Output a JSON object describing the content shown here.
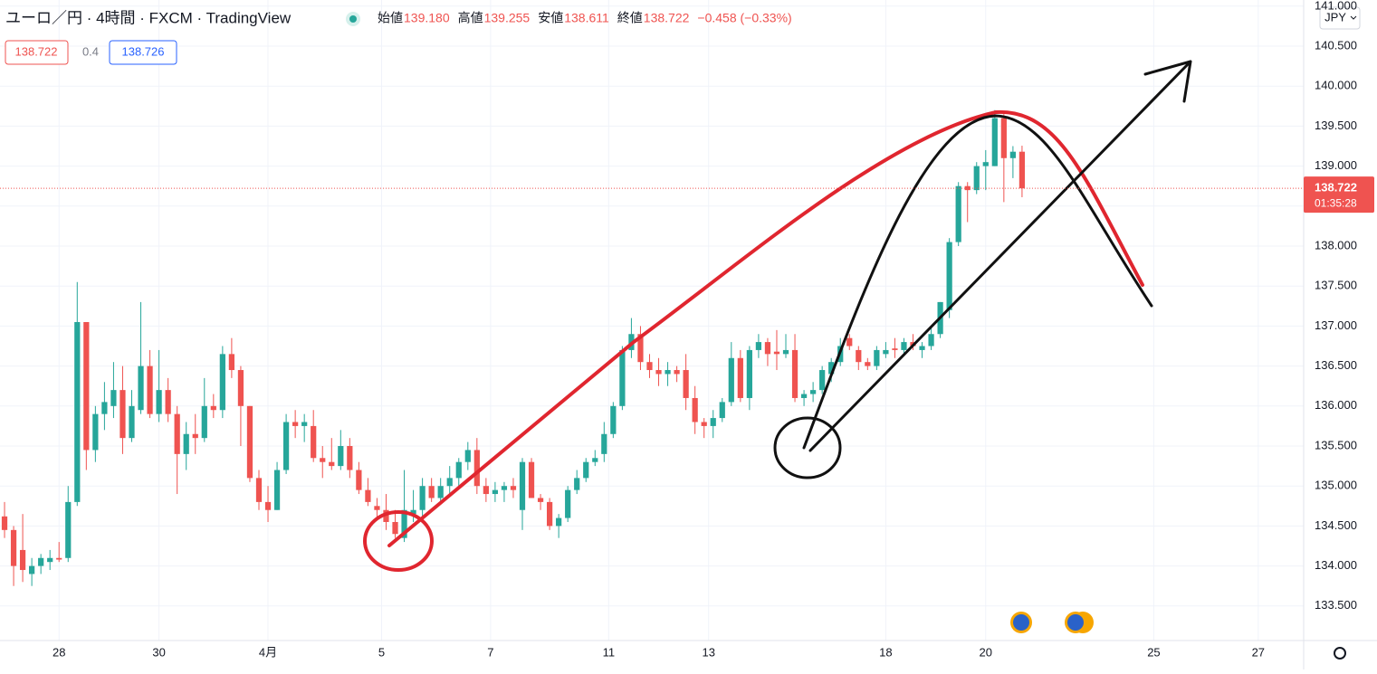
{
  "chart_data": {
    "type": "candlestick",
    "title": "ユーロ／円 · 4時間 · FXCM · TradingView",
    "legend": {
      "open_label": "始値",
      "open": "139.180",
      "high_label": "高値",
      "high": "139.255",
      "low_label": "安値",
      "low": "138.611",
      "close_label": "終値",
      "close": "138.722",
      "change": "−0.458 (−0.33%)"
    },
    "sell_price": "138.722",
    "spread": "0.4",
    "buy_price": "138.726",
    "currency": "JPY",
    "last_price": {
      "value": 138.722,
      "label": "138.722"
    },
    "countdown": "01:35:28",
    "up_color": "#26a69a",
    "down_color": "#ef5350",
    "grid": true,
    "ylim": [
      133.068,
      141.077
    ],
    "yticks": [
      {
        "value": 133.5,
        "label": "133.500"
      },
      {
        "value": 134,
        "label": "134.000"
      },
      {
        "value": 134.5,
        "label": "134.500"
      },
      {
        "value": 135,
        "label": "135.000"
      },
      {
        "value": 135.5,
        "label": "135.500"
      },
      {
        "value": 136,
        "label": "136.000"
      },
      {
        "value": 136.5,
        "label": "136.500"
      },
      {
        "value": 137,
        "label": "137.000"
      },
      {
        "value": 137.5,
        "label": "137.500"
      },
      {
        "value": 138,
        "label": "138.000"
      },
      {
        "value": 138.5,
        "label": "138.500"
      },
      {
        "value": 139,
        "label": "139.000"
      },
      {
        "value": 139.5,
        "label": "139.500"
      },
      {
        "value": 140,
        "label": "140.000"
      },
      {
        "value": 140.5,
        "label": "140.500"
      },
      {
        "value": 141,
        "label": "141.000"
      }
    ],
    "xlim": [
      -0.5,
      143
    ],
    "xticks": [
      {
        "value": 6,
        "label": "28"
      },
      {
        "value": 17,
        "label": "30"
      },
      {
        "value": 29,
        "label": "4月"
      },
      {
        "value": 41.5,
        "label": "5"
      },
      {
        "value": 53.5,
        "label": "7"
      },
      {
        "value": 66.5,
        "label": "11"
      },
      {
        "value": 77.5,
        "label": "13"
      },
      {
        "value": 97,
        "label": "18"
      },
      {
        "value": 108,
        "label": "20"
      },
      {
        "value": 126.5,
        "label": "25"
      },
      {
        "value": 138,
        "label": "27"
      }
    ],
    "ohlc": [
      [
        134.62,
        134.8,
        134.35,
        134.45
      ],
      [
        134.45,
        134.5,
        133.75,
        134.0
      ],
      [
        134.2,
        134.65,
        133.8,
        133.95
      ],
      [
        133.9,
        134.1,
        133.75,
        134.0
      ],
      [
        134.0,
        134.15,
        133.9,
        134.1
      ],
      [
        134.05,
        134.2,
        133.95,
        134.1
      ],
      [
        134.1,
        134.3,
        134.05,
        134.08
      ],
      [
        134.1,
        135.0,
        134.05,
        134.8
      ],
      [
        134.8,
        137.55,
        134.75,
        137.05
      ],
      [
        137.05,
        137.05,
        135.2,
        135.45
      ],
      [
        135.45,
        136.0,
        135.3,
        135.9
      ],
      [
        135.9,
        136.3,
        135.7,
        136.05
      ],
      [
        136.0,
        136.55,
        135.85,
        136.2
      ],
      [
        136.2,
        136.5,
        135.4,
        135.6
      ],
      [
        135.6,
        136.2,
        135.55,
        136.0
      ],
      [
        135.95,
        137.3,
        135.9,
        136.5
      ],
      [
        136.5,
        136.7,
        135.85,
        135.9
      ],
      [
        135.9,
        136.7,
        135.8,
        136.2
      ],
      [
        136.2,
        136.35,
        135.8,
        135.9
      ],
      [
        135.9,
        136.0,
        134.9,
        135.4
      ],
      [
        135.4,
        135.8,
        135.2,
        135.65
      ],
      [
        135.65,
        135.9,
        135.4,
        135.6
      ],
      [
        135.6,
        136.35,
        135.55,
        136.0
      ],
      [
        136.0,
        136.15,
        135.85,
        135.95
      ],
      [
        135.95,
        136.75,
        135.85,
        136.65
      ],
      [
        136.65,
        136.85,
        136.35,
        136.45
      ],
      [
        136.45,
        136.5,
        135.5,
        136.0
      ],
      [
        136.0,
        136.0,
        135.05,
        135.1
      ],
      [
        135.1,
        135.2,
        134.7,
        134.8
      ],
      [
        134.8,
        135.0,
        134.55,
        134.7
      ],
      [
        134.7,
        135.3,
        134.7,
        135.2
      ],
      [
        135.2,
        135.9,
        135.15,
        135.8
      ],
      [
        135.8,
        135.95,
        135.6,
        135.75
      ],
      [
        135.75,
        135.9,
        135.55,
        135.8
      ],
      [
        135.75,
        135.95,
        135.3,
        135.35
      ],
      [
        135.35,
        135.5,
        135.1,
        135.3
      ],
      [
        135.3,
        135.6,
        135.2,
        135.25
      ],
      [
        135.25,
        135.7,
        135.2,
        135.5
      ],
      [
        135.5,
        135.6,
        135.1,
        135.2
      ],
      [
        135.2,
        135.3,
        134.9,
        134.95
      ],
      [
        134.95,
        135.1,
        134.75,
        134.8
      ],
      [
        134.75,
        134.85,
        134.6,
        134.7
      ],
      [
        134.7,
        134.9,
        134.45,
        134.55
      ],
      [
        134.55,
        134.7,
        134.35,
        134.4
      ],
      [
        134.35,
        135.2,
        134.3,
        134.7
      ],
      [
        134.65,
        134.95,
        134.55,
        134.7
      ],
      [
        134.7,
        135.1,
        134.6,
        135.0
      ],
      [
        135.0,
        135.1,
        134.8,
        134.85
      ],
      [
        134.85,
        135.1,
        134.8,
        135.0
      ],
      [
        135.0,
        135.25,
        134.9,
        135.1
      ],
      [
        135.1,
        135.35,
        135.0,
        135.3
      ],
      [
        135.3,
        135.55,
        135.2,
        135.45
      ],
      [
        135.45,
        135.6,
        134.9,
        135.0
      ],
      [
        135.0,
        135.1,
        134.8,
        134.9
      ],
      [
        134.9,
        135.05,
        134.8,
        134.95
      ],
      [
        134.95,
        135.05,
        134.8,
        135.0
      ],
      [
        135.0,
        135.1,
        134.85,
        134.95
      ],
      [
        134.7,
        135.35,
        134.45,
        135.3
      ],
      [
        135.3,
        135.35,
        134.85,
        134.85
      ],
      [
        134.85,
        134.9,
        134.7,
        134.8
      ],
      [
        134.8,
        134.85,
        134.45,
        134.5
      ],
      [
        134.5,
        134.65,
        134.35,
        134.6
      ],
      [
        134.6,
        135.0,
        134.55,
        134.95
      ],
      [
        134.95,
        135.2,
        134.9,
        135.1
      ],
      [
        135.1,
        135.35,
        135.05,
        135.3
      ],
      [
        135.3,
        135.45,
        135.25,
        135.35
      ],
      [
        135.4,
        135.8,
        135.3,
        135.65
      ],
      [
        135.65,
        136.05,
        135.6,
        136.0
      ],
      [
        136.0,
        136.75,
        135.95,
        136.7
      ],
      [
        136.7,
        137.1,
        136.6,
        136.9
      ],
      [
        136.9,
        137.0,
        136.45,
        136.55
      ],
      [
        136.55,
        136.65,
        136.35,
        136.45
      ],
      [
        136.45,
        136.6,
        136.25,
        136.4
      ],
      [
        136.4,
        136.55,
        136.25,
        136.45
      ],
      [
        136.45,
        136.5,
        136.3,
        136.4
      ],
      [
        136.45,
        136.65,
        135.95,
        136.1
      ],
      [
        136.1,
        136.25,
        135.65,
        135.8
      ],
      [
        135.8,
        135.85,
        135.6,
        135.75
      ],
      [
        135.75,
        135.95,
        135.6,
        135.85
      ],
      [
        135.85,
        136.1,
        135.8,
        136.05
      ],
      [
        136.05,
        136.8,
        136.0,
        136.6
      ],
      [
        136.6,
        136.7,
        136.05,
        136.1
      ],
      [
        136.1,
        136.75,
        135.95,
        136.7
      ],
      [
        136.7,
        136.9,
        136.6,
        136.8
      ],
      [
        136.8,
        136.85,
        136.5,
        136.65
      ],
      [
        136.68,
        136.95,
        136.45,
        136.65
      ],
      [
        136.65,
        136.9,
        136.6,
        136.7
      ],
      [
        136.7,
        136.9,
        136.05,
        136.1
      ],
      [
        136.1,
        136.2,
        136.0,
        136.15
      ],
      [
        136.15,
        136.3,
        136.05,
        136.2
      ],
      [
        136.2,
        136.5,
        136.15,
        136.45
      ],
      [
        136.4,
        136.6,
        136.3,
        136.55
      ],
      [
        136.55,
        136.85,
        136.5,
        136.75
      ],
      [
        136.85,
        136.9,
        136.7,
        136.75
      ],
      [
        136.7,
        136.75,
        136.45,
        136.55
      ],
      [
        136.55,
        136.6,
        136.45,
        136.5
      ],
      [
        136.5,
        136.75,
        136.45,
        136.7
      ],
      [
        136.65,
        136.8,
        136.6,
        136.7
      ],
      [
        136.72,
        136.85,
        136.6,
        136.7
      ],
      [
        136.7,
        136.85,
        136.65,
        136.8
      ],
      [
        136.8,
        136.9,
        136.7,
        136.75
      ],
      [
        136.7,
        136.8,
        136.6,
        136.75
      ],
      [
        136.75,
        137.0,
        136.7,
        136.9
      ],
      [
        136.9,
        137.3,
        136.85,
        137.3
      ],
      [
        137.2,
        138.1,
        137.1,
        138.05
      ],
      [
        138.05,
        138.8,
        138.0,
        138.75
      ],
      [
        138.75,
        138.8,
        138.3,
        138.7
      ],
      [
        138.7,
        139.05,
        138.65,
        139.0
      ],
      [
        139.0,
        139.2,
        138.7,
        139.05
      ],
      [
        139.0,
        139.7,
        139.0,
        139.6
      ],
      [
        139.6,
        139.65,
        138.55,
        139.1
      ],
      [
        139.1,
        139.25,
        138.85,
        139.18
      ],
      [
        139.18,
        139.255,
        138.611,
        138.722
      ]
    ]
  }
}
